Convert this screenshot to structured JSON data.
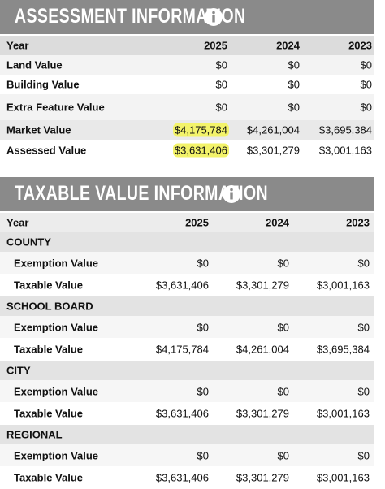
{
  "assessment": {
    "title": "ASSESSMENT INFORMATION",
    "columns": [
      "Year",
      "2025",
      "2024",
      "2023"
    ],
    "rows": [
      [
        "Land Value",
        "$0",
        "$0",
        "$0"
      ],
      [
        "Building Value",
        "$0",
        "$0",
        "$0"
      ],
      [
        "Extra Feature Value",
        "$0",
        "$0",
        "$0"
      ],
      [
        "Market Value",
        "$4,175,784",
        "$4,261,004",
        "$3,695,384"
      ],
      [
        "Assessed Value",
        "$3,631,406",
        "$3,301,279",
        "$3,001,163"
      ]
    ]
  },
  "taxable": {
    "title": "TAXABLE VALUE INFORMATION",
    "columns": [
      "Year",
      "2025",
      "2024",
      "2023"
    ],
    "groups": [
      {
        "name": "COUNTY",
        "rows": [
          [
            "Exemption Value",
            "$0",
            "$0",
            "$0"
          ],
          [
            "Taxable Value",
            "$3,631,406",
            "$3,301,279",
            "$3,001,163"
          ]
        ]
      },
      {
        "name": "SCHOOL BOARD",
        "rows": [
          [
            "Exemption Value",
            "$0",
            "$0",
            "$0"
          ],
          [
            "Taxable Value",
            "$4,175,784",
            "$4,261,004",
            "$3,695,384"
          ]
        ]
      },
      {
        "name": "CITY",
        "rows": [
          [
            "Exemption Value",
            "$0",
            "$0",
            "$0"
          ],
          [
            "Taxable Value",
            "$3,631,406",
            "$3,301,279",
            "$3,001,163"
          ]
        ]
      },
      {
        "name": "REGIONAL",
        "rows": [
          [
            "Exemption Value",
            "$0",
            "$0",
            "$0"
          ],
          [
            "Taxable Value",
            "$3,631,406",
            "$3,301,279",
            "$3,001,163"
          ]
        ]
      }
    ]
  }
}
